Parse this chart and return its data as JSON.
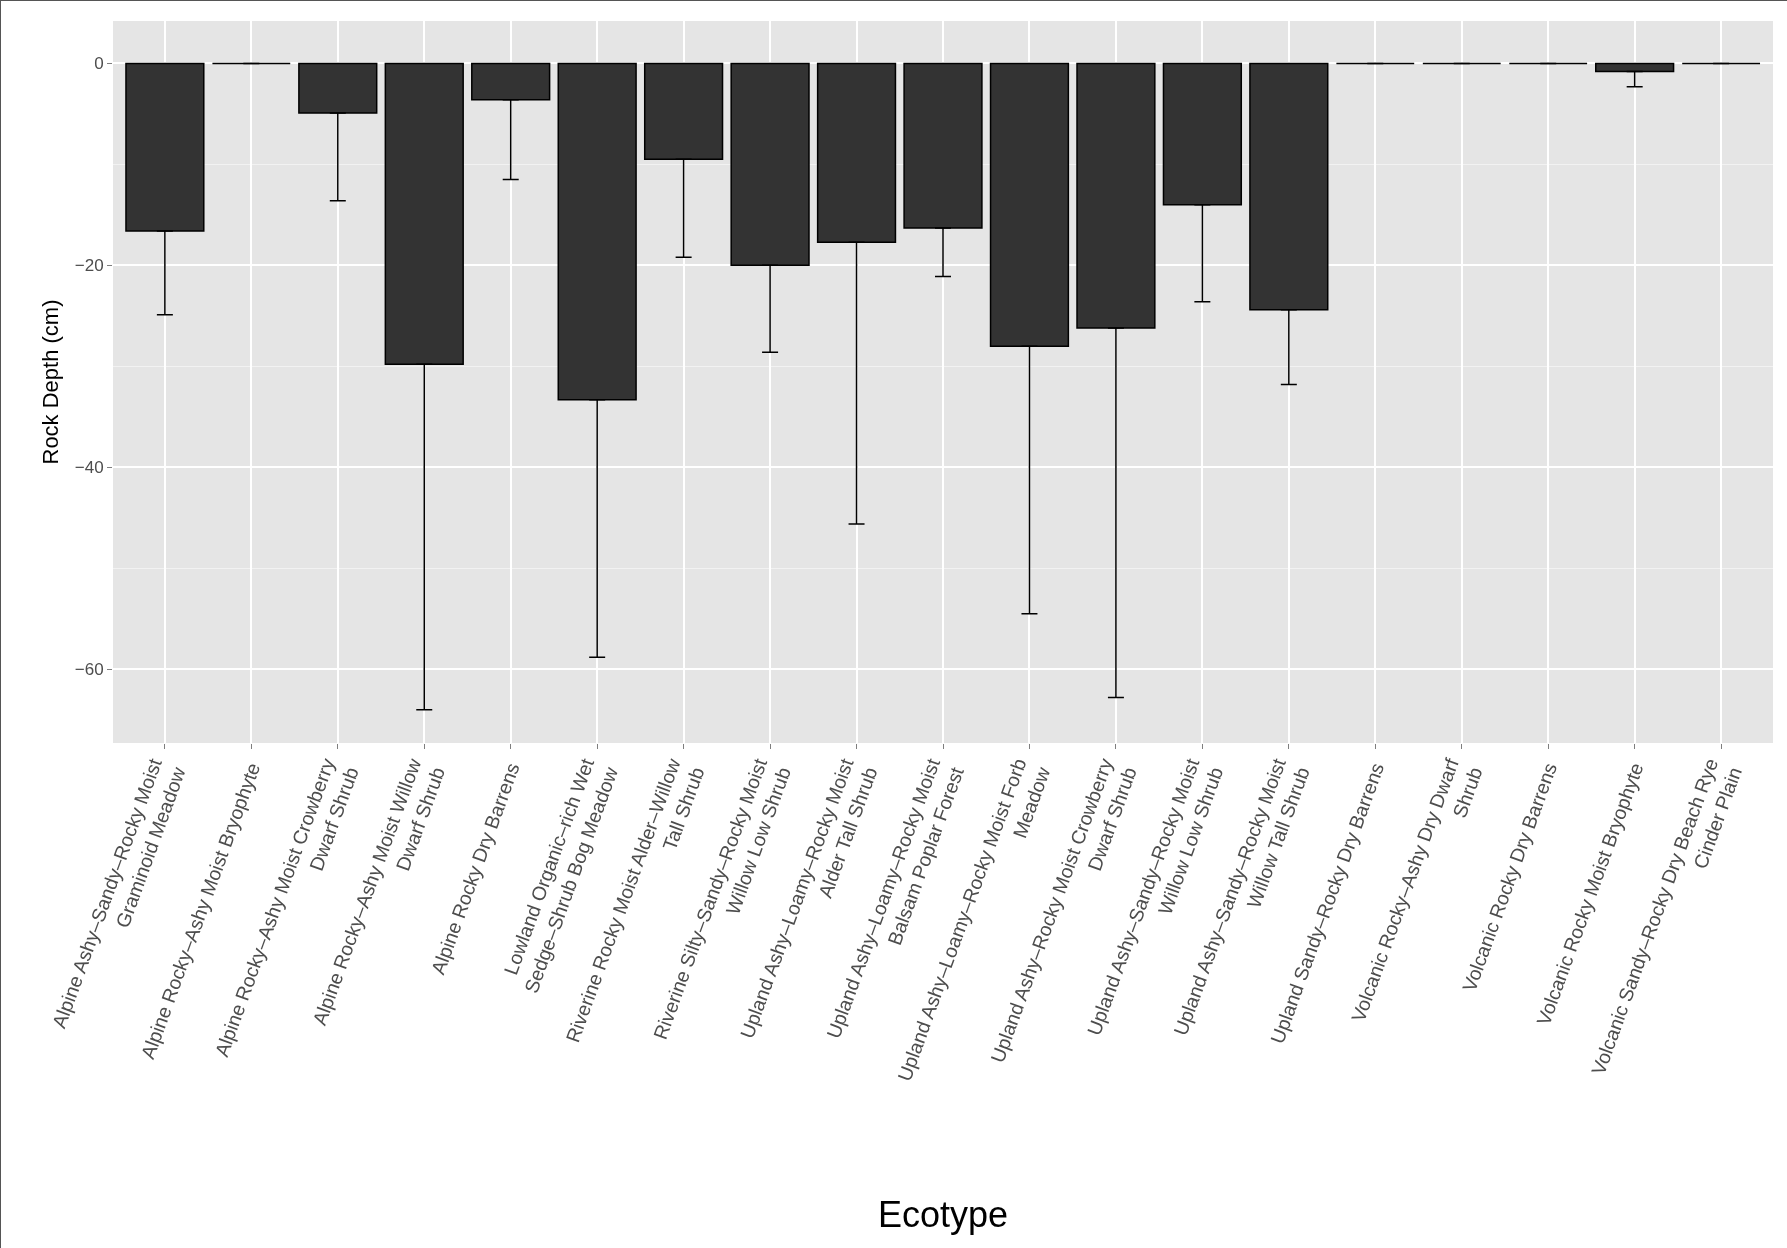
{
  "chart_data": {
    "type": "bar",
    "xlabel": "Ecotype",
    "ylabel": "Rock Depth (cm)",
    "categories": [
      "Alpine Ashy–Sandy–Rocky Moist Graminoid Meadow",
      "Alpine Rocky–Ashy Moist Bryophyte",
      "Alpine Rocky–Ashy Moist Crowberry Dwarf Shrub",
      "Alpine Rocky–Ashy Moist Willow Dwarf Shrub",
      "Alpine Rocky Dry Barrens",
      "Lowland Organic–rich Wet Sedge–Shrub Bog Meadow",
      "Riverine Rocky Moist Alder–Willow Tall Shrub",
      "Riverine Silty–Sandy–Rocky Moist Willow Low Shrub",
      "Upland Ashy–Loamy–Rocky Moist Alder Tall Shrub",
      "Upland Ashy–Loamy–Rocky Moist Balsam Poplar Forest",
      "Upland Ashy–Loamy–Rocky Moist Forb Meadow",
      "Upland Ashy–Rocky Moist Crowberry Dwarf Shrub",
      "Upland Ashy–Sandy–Rocky Moist Willow Low Shrub",
      "Upland Ashy–Sandy–Rocky Moist Willow Tall Shrub",
      "Upland Sandy–Rocky Dry Barrens",
      "Volcanic Rocky–Ashy Dry Dwarf Shrub",
      "Volcanic Rocky Dry Barrens",
      "Volcanic Rocky Moist Bryophyte",
      "Volcanic Sandy–Rocky Dry Beach Rye Cinder Plain"
    ],
    "values": [
      -16.6,
      0,
      -4.9,
      -29.8,
      -3.6,
      -33.3,
      -9.5,
      -20.0,
      -17.7,
      -16.3,
      -28.0,
      -26.2,
      -14.0,
      -24.4,
      0,
      0,
      0,
      -0.8,
      0
    ],
    "errors": [
      [
        -24.9,
        -16.6
      ],
      null,
      [
        -13.6,
        -4.9
      ],
      [
        -64.0,
        -29.8
      ],
      [
        -11.5,
        -3.6
      ],
      [
        -58.8,
        -33.3
      ],
      [
        -19.2,
        -9.5
      ],
      [
        -28.6,
        -20.0
      ],
      [
        -45.6,
        -17.7
      ],
      [
        -21.1,
        -16.3
      ],
      [
        -54.5,
        -28.0
      ],
      [
        -62.8,
        -26.2
      ],
      [
        -23.6,
        -14.0
      ],
      [
        -31.8,
        -24.4
      ],
      null,
      null,
      null,
      [
        -2.3,
        -0.8
      ],
      null
    ],
    "colors": [
      "#333333",
      "#000000",
      "#333333",
      "#333333",
      "#333333",
      "#333333",
      "#333333",
      "#333333",
      "#333333",
      "#333333",
      "#333333",
      "#333333",
      "#333333",
      "#333333",
      "#000000",
      "#000000",
      "#000000",
      "#333333",
      "#000000"
    ],
    "ylim": [
      -67.3,
      4.2
    ],
    "yticks": [
      -60,
      -40,
      -20,
      0
    ],
    "grid": true
  }
}
